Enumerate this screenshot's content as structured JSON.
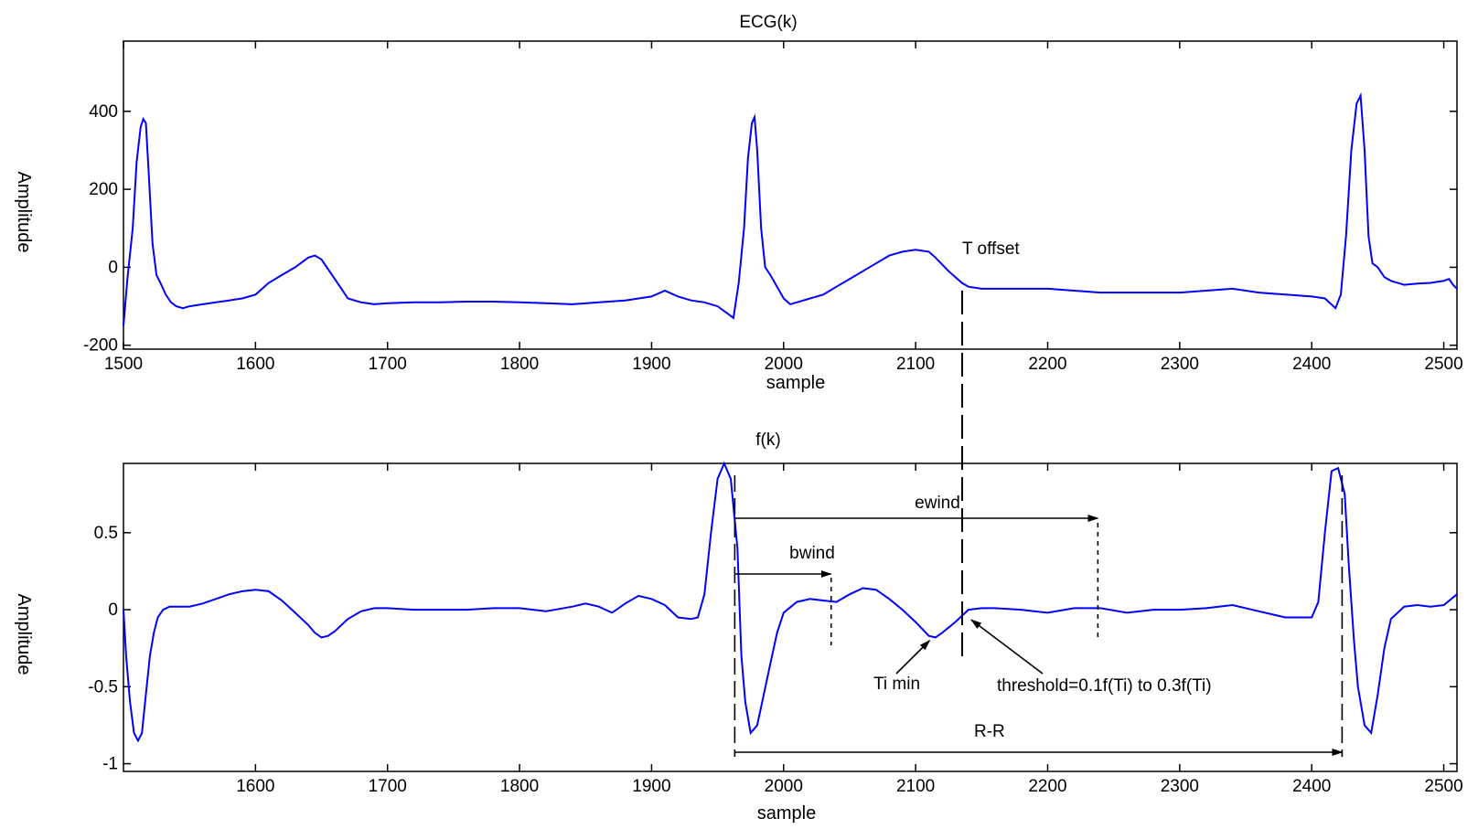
{
  "chart_data": [
    {
      "type": "line",
      "title": "ECG(k)",
      "xlabel": "sample",
      "ylabel": "Amplitude",
      "xlim": [
        1500,
        2510
      ],
      "ylim": [
        -210,
        580
      ],
      "xticks": [
        1500,
        1600,
        1700,
        1800,
        1900,
        2000,
        2100,
        2200,
        2300,
        2400,
        2500
      ],
      "yticks": [
        -200,
        0,
        200,
        400
      ],
      "grid": false,
      "series": [
        {
          "color": "#0000ff",
          "x": [
            1500,
            1503,
            1507,
            1510,
            1513,
            1515,
            1517,
            1519,
            1522,
            1525,
            1528,
            1532,
            1536,
            1540,
            1545,
            1550,
            1560,
            1570,
            1580,
            1590,
            1600,
            1610,
            1620,
            1630,
            1640,
            1645,
            1650,
            1660,
            1670,
            1680,
            1690,
            1700,
            1720,
            1740,
            1760,
            1780,
            1800,
            1820,
            1840,
            1860,
            1880,
            1900,
            1910,
            1920,
            1930,
            1940,
            1950,
            1958,
            1962,
            1966,
            1970,
            1973,
            1976,
            1978,
            1980,
            1983,
            1986,
            1990,
            1995,
            2000,
            2005,
            2010,
            2020,
            2030,
            2040,
            2050,
            2060,
            2070,
            2080,
            2090,
            2100,
            2110,
            2115,
            2125,
            2135,
            2140,
            2150,
            2160,
            2180,
            2200,
            2220,
            2240,
            2260,
            2280,
            2300,
            2320,
            2340,
            2360,
            2380,
            2400,
            2410,
            2418,
            2422,
            2426,
            2430,
            2434,
            2437,
            2440,
            2443,
            2446,
            2450,
            2455,
            2460,
            2470,
            2480,
            2490,
            2500,
            2504,
            2507,
            2510
          ],
          "y": [
            -150,
            -30,
            100,
            270,
            360,
            380,
            370,
            250,
            60,
            -20,
            -40,
            -70,
            -90,
            -100,
            -105,
            -100,
            -95,
            -90,
            -85,
            -80,
            -70,
            -40,
            -20,
            0,
            25,
            30,
            20,
            -30,
            -80,
            -90,
            -95,
            -92,
            -90,
            -90,
            -88,
            -88,
            -90,
            -92,
            -95,
            -90,
            -85,
            -75,
            -60,
            -75,
            -85,
            -90,
            -100,
            -120,
            -130,
            -40,
            100,
            280,
            370,
            385,
            300,
            100,
            0,
            -20,
            -50,
            -80,
            -95,
            -90,
            -80,
            -70,
            -50,
            -30,
            -10,
            10,
            30,
            40,
            45,
            40,
            25,
            -10,
            -40,
            -50,
            -55,
            -55,
            -55,
            -55,
            -60,
            -65,
            -65,
            -65,
            -65,
            -60,
            -55,
            -65,
            -70,
            -75,
            -80,
            -105,
            -70,
            80,
            300,
            420,
            440,
            300,
            80,
            10,
            0,
            -25,
            -35,
            -45,
            -42,
            -40,
            -35,
            -30,
            -45,
            -55
          ]
        }
      ],
      "annotations": [
        {
          "text": "T offset",
          "x": 2137,
          "y": 35
        }
      ]
    },
    {
      "type": "line",
      "title": "f(k)",
      "xlabel": "sample",
      "ylabel": "Amplitude",
      "xlim": [
        1500,
        2510
      ],
      "ylim": [
        -1.05,
        0.95
      ],
      "xticks": [
        1600,
        1700,
        1800,
        1900,
        2000,
        2100,
        2200,
        2300,
        2400,
        2500
      ],
      "yticks": [
        -1,
        -0.5,
        0,
        0.5
      ],
      "grid": false,
      "series": [
        {
          "color": "#0000ff",
          "x": [
            1500,
            1502,
            1505,
            1508,
            1511,
            1514,
            1517,
            1520,
            1523,
            1526,
            1530,
            1535,
            1540,
            1545,
            1550,
            1560,
            1570,
            1580,
            1590,
            1600,
            1610,
            1620,
            1630,
            1640,
            1645,
            1650,
            1655,
            1660,
            1670,
            1680,
            1690,
            1700,
            1720,
            1740,
            1760,
            1780,
            1800,
            1820,
            1840,
            1850,
            1860,
            1870,
            1880,
            1890,
            1900,
            1910,
            1920,
            1930,
            1935,
            1940,
            1945,
            1950,
            1955,
            1960,
            1965,
            1968,
            1971,
            1975,
            1980,
            1985,
            1990,
            1995,
            2000,
            2010,
            2020,
            2030,
            2040,
            2050,
            2060,
            2070,
            2080,
            2090,
            2100,
            2110,
            2115,
            2120,
            2130,
            2140,
            2150,
            2160,
            2180,
            2200,
            2220,
            2240,
            2260,
            2280,
            2300,
            2320,
            2340,
            2360,
            2380,
            2400,
            2405,
            2410,
            2415,
            2420,
            2425,
            2428,
            2432,
            2435,
            2440,
            2445,
            2450,
            2455,
            2460,
            2470,
            2480,
            2490,
            2500,
            2510
          ],
          "y": [
            0,
            -0.3,
            -0.6,
            -0.8,
            -0.85,
            -0.8,
            -0.55,
            -0.3,
            -0.15,
            -0.05,
            0,
            0.02,
            0.02,
            0.02,
            0.02,
            0.04,
            0.07,
            0.1,
            0.12,
            0.13,
            0.12,
            0.06,
            -0.02,
            -0.1,
            -0.15,
            -0.18,
            -0.17,
            -0.14,
            -0.06,
            -0.01,
            0.01,
            0.01,
            0,
            0,
            0,
            0.01,
            0.01,
            -0.01,
            0.02,
            0.04,
            0.02,
            -0.02,
            0.04,
            0.09,
            0.07,
            0.03,
            -0.05,
            -0.06,
            -0.05,
            0.1,
            0.5,
            0.85,
            0.95,
            0.85,
            0.4,
            -0.3,
            -0.6,
            -0.8,
            -0.75,
            -0.55,
            -0.35,
            -0.15,
            -0.02,
            0.05,
            0.07,
            0.06,
            0.05,
            0.1,
            0.14,
            0.13,
            0.07,
            0,
            -0.08,
            -0.17,
            -0.18,
            -0.15,
            -0.08,
            0,
            0.01,
            0.01,
            0,
            -0.02,
            0.01,
            0.01,
            -0.02,
            0,
            0,
            0.01,
            0.03,
            -0.01,
            -0.05,
            -0.05,
            0.05,
            0.5,
            0.9,
            0.92,
            0.75,
            0.3,
            -0.2,
            -0.5,
            -0.75,
            -0.8,
            -0.55,
            -0.25,
            -0.06,
            0.02,
            0.03,
            0.02,
            0.03,
            0.1
          ]
        }
      ],
      "annotations": [
        {
          "text": "ewind",
          "x": 2060,
          "y": 0.63
        },
        {
          "text": "bwind",
          "x": 2007,
          "y": 0.33
        },
        {
          "text": "Ti min",
          "x": 2085,
          "y": -0.45
        },
        {
          "text": "threshold=0.1f(Ti) to 0.3f(Ti)",
          "x": 2280,
          "y": -0.45
        },
        {
          "text": "R-R",
          "x": 2145,
          "y": -0.75
        }
      ]
    }
  ]
}
